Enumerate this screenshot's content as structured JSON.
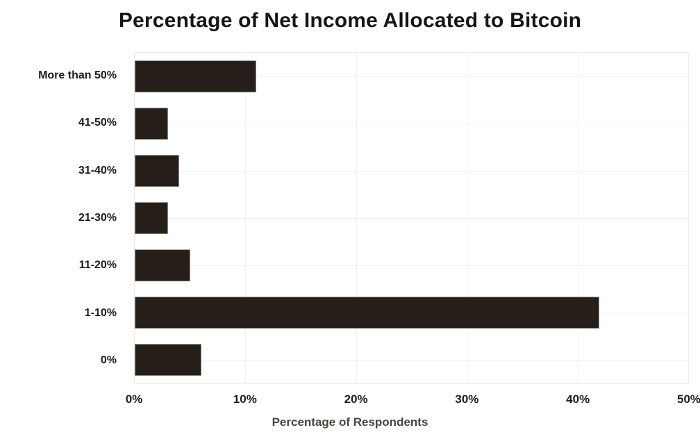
{
  "chart_data": {
    "type": "bar",
    "orientation": "horizontal",
    "title": "Percentage of Net Income Allocated to Bitcoin",
    "categories": [
      "More than 50%",
      "41-50%",
      "31-40%",
      "21-30%",
      "11-20%",
      "1-10%",
      "0%"
    ],
    "values": [
      11,
      3,
      4,
      3,
      5,
      42,
      6
    ],
    "xlabel": "Percentage of Respondents",
    "ylabel": "",
    "xlim": [
      0,
      50
    ],
    "xticks": [
      0,
      10,
      20,
      30,
      40,
      50
    ],
    "xtick_labels": [
      "0%",
      "10%",
      "20%",
      "30%",
      "40%",
      "50%"
    ],
    "grid": true,
    "legend": "none",
    "colors": {
      "bar_fill": "#261f19",
      "bar_border": "#8e8b84",
      "gridline": "#f0f0f0",
      "background": "#ffffff",
      "title_text": "#171513",
      "tick_text": "#1d1d1d",
      "axis_title_text": "#49443c"
    }
  }
}
